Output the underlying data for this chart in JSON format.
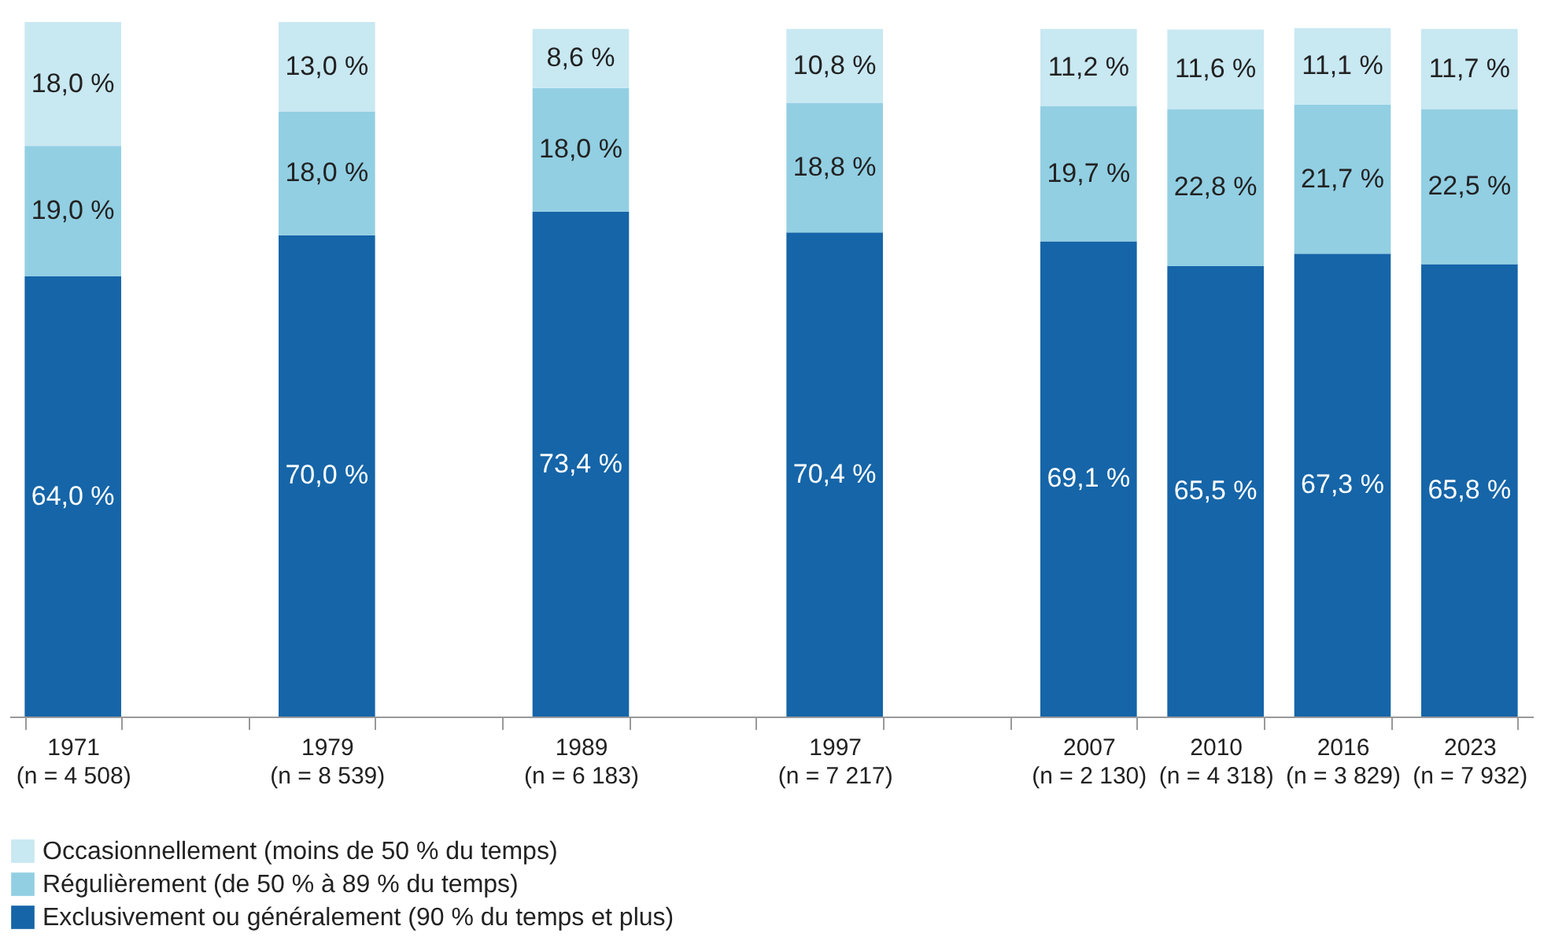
{
  "chart_data": {
    "type": "bar",
    "stacked": true,
    "legend": "bottom",
    "categories": [
      "1971\n(n = 4 508)",
      null,
      "1979\n(n = 8 539)",
      null,
      "1989\n(n = 6 183)",
      null,
      "1997\n(n = 7 217)",
      null,
      "2007\n(n = 2 130)",
      "2010\n(n = 4 318)",
      "2016\n(n = 3 829)",
      "2023\n(n = 7 932)"
    ],
    "series": [
      {
        "name": "Exclusivement ou généralement (90 % du temps et plus)",
        "color": "#1565a8",
        "values": [
          64.0,
          null,
          70.0,
          null,
          73.4,
          null,
          70.4,
          null,
          69.1,
          65.5,
          67.3,
          65.8
        ],
        "value_labels": [
          "64,0 %",
          null,
          "70,0 %",
          null,
          "73,4 %",
          null,
          "70,4 %",
          null,
          "69,1 %",
          "65,5 %",
          "67,3 %",
          "65,8 %"
        ]
      },
      {
        "name": "Régulièrement (de 50 % à 89 % du temps)",
        "color": "#92cfe3",
        "values": [
          19.0,
          null,
          18.0,
          null,
          18.0,
          null,
          18.8,
          null,
          19.7,
          22.8,
          21.7,
          22.5
        ],
        "value_labels": [
          "19,0 %",
          null,
          "18,0 %",
          null,
          "18,0 %",
          null,
          "18,8 %",
          null,
          "19,7 %",
          "22,8 %",
          "21,7 %",
          "22,5 %"
        ]
      },
      {
        "name": "Occasionnellement (moins de 50 % du temps)",
        "color": "#c8e8f2",
        "values": [
          18.0,
          null,
          13.0,
          null,
          8.6,
          null,
          10.8,
          null,
          11.2,
          11.6,
          11.1,
          11.7
        ],
        "value_labels": [
          "18,0 %",
          null,
          "13,0 %",
          null,
          "8,6 %",
          null,
          "10,8 %",
          null,
          "11,2 %",
          "11,6 %",
          "11,1 %",
          "11,7 %"
        ]
      }
    ]
  }
}
